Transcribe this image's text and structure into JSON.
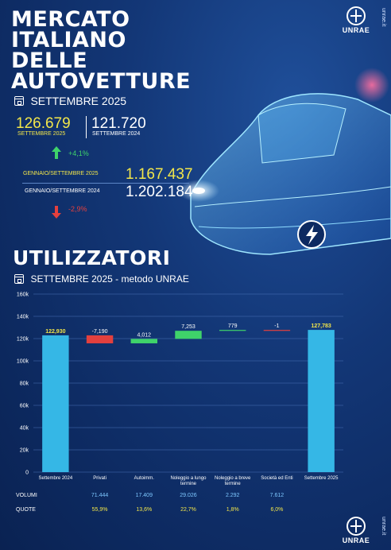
{
  "header": {
    "title_lines": [
      "MERCATO",
      "ITALIANO",
      "DELLE",
      "AUTOVETTURE"
    ],
    "period": "SETTEMBRE 2025",
    "logo_text": "UNRAE",
    "site_url": "unrae.it"
  },
  "kpi": {
    "month_current_value": "126.679",
    "month_current_label": "SETTEMBRE 2025",
    "month_previous_value": "121.720",
    "month_previous_label": "SETTEMBRE 2024",
    "month_change": "+4,1%",
    "ytd_current_label": "GENNAIO/SETTEMBRE 2025",
    "ytd_current_value": "1.167.437",
    "ytd_previous_label": "GENNAIO/SETTEMBRE 2024",
    "ytd_previous_value": "1.202.184",
    "ytd_change": "-2,9%"
  },
  "section": {
    "title": "UTILIZZATORI",
    "subtitle": "SETTEMBRE 2025 - metodo UNRAE"
  },
  "colors": {
    "total_bar": "#35b7e6",
    "decrease_bar": "#e3403e",
    "increase_bar": "#3fd36a",
    "highlight_text": "#f2e64a",
    "table_blue": "#7ec8ff"
  },
  "chart_data": {
    "type": "bar",
    "subtype": "waterfall",
    "categories": [
      "Settembre 2024",
      "Privati",
      "Autoimm.",
      "Noleggio a lungo termine",
      "Noleggio a breve termine",
      "Società ed Enti",
      "Settembre 2025"
    ],
    "values": [
      122930,
      -7190,
      4012,
      7253,
      779,
      -1,
      127783
    ],
    "value_labels": [
      "122,930",
      "-7,190",
      "4,012",
      "7,253",
      "779",
      "-1",
      "127,783"
    ],
    "kinds": [
      "total",
      "decrease",
      "increase",
      "increase",
      "increase",
      "decrease",
      "total"
    ],
    "ylim": [
      0,
      160000
    ],
    "yticks": [
      0,
      20000,
      40000,
      60000,
      80000,
      100000,
      120000,
      140000,
      160000
    ],
    "ytick_labels": [
      "0",
      "20k",
      "40k",
      "60k",
      "80k",
      "100k",
      "120k",
      "140k",
      "160k"
    ],
    "grid": true
  },
  "table": {
    "rows": [
      {
        "label": "VOLUMI",
        "values": [
          "71.444",
          "17.409",
          "29.026",
          "2.292",
          "7.612"
        ]
      },
      {
        "label": "QUOTE",
        "values": [
          "55,9%",
          "13,6%",
          "22,7%",
          "1,8%",
          "6,0%"
        ]
      }
    ]
  }
}
